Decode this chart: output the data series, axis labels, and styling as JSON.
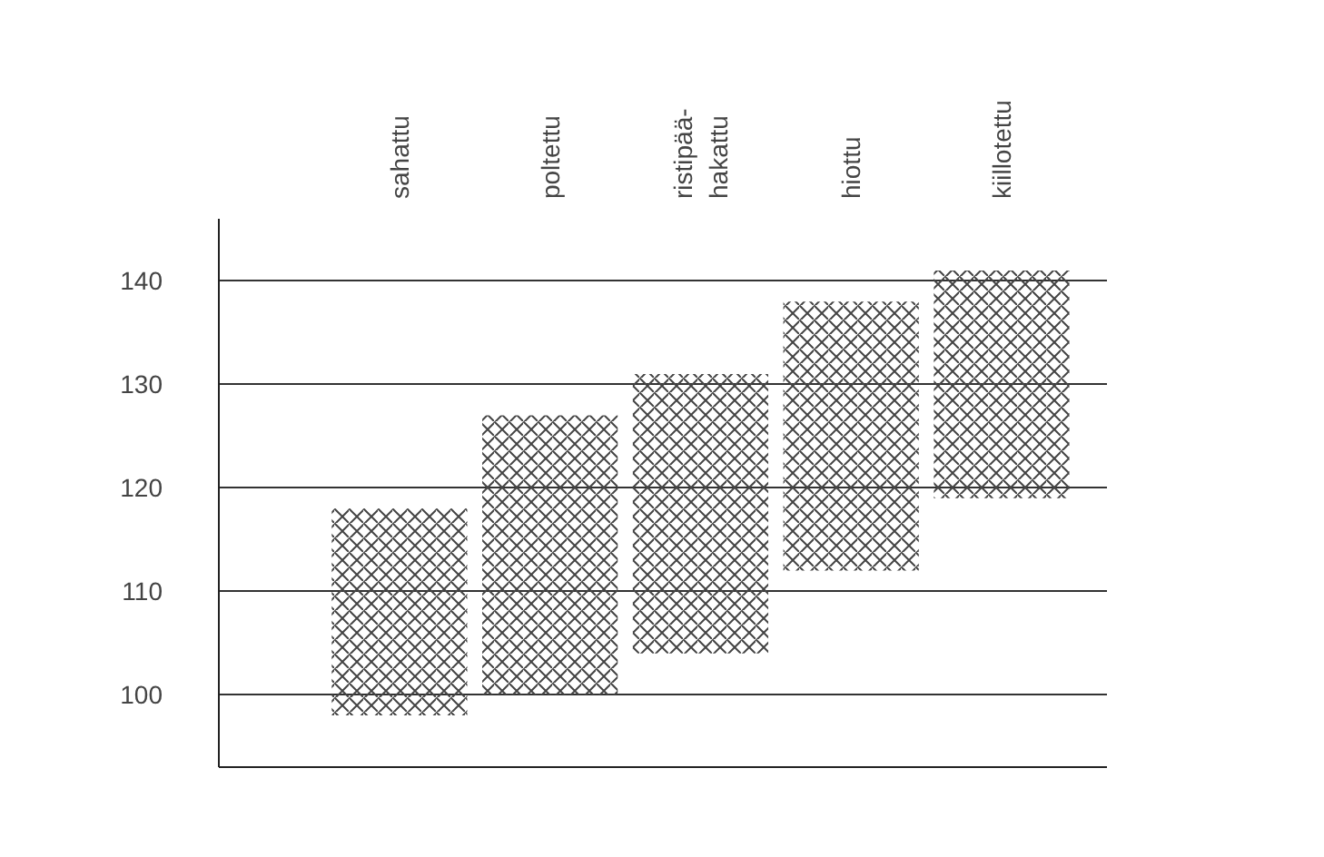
{
  "chart_data": {
    "type": "bar",
    "categories": [
      "sahattu",
      "poltettu",
      "ristipää-\nhakattu",
      "hiottu",
      "kiillotettu"
    ],
    "base": [
      98,
      100,
      104,
      112,
      119
    ],
    "values": [
      20,
      27,
      27,
      26,
      22
    ],
    "color": "#444444",
    "ylim": [
      93,
      146
    ],
    "yticks": [
      100,
      110,
      120,
      130,
      140
    ],
    "grid": "y"
  }
}
